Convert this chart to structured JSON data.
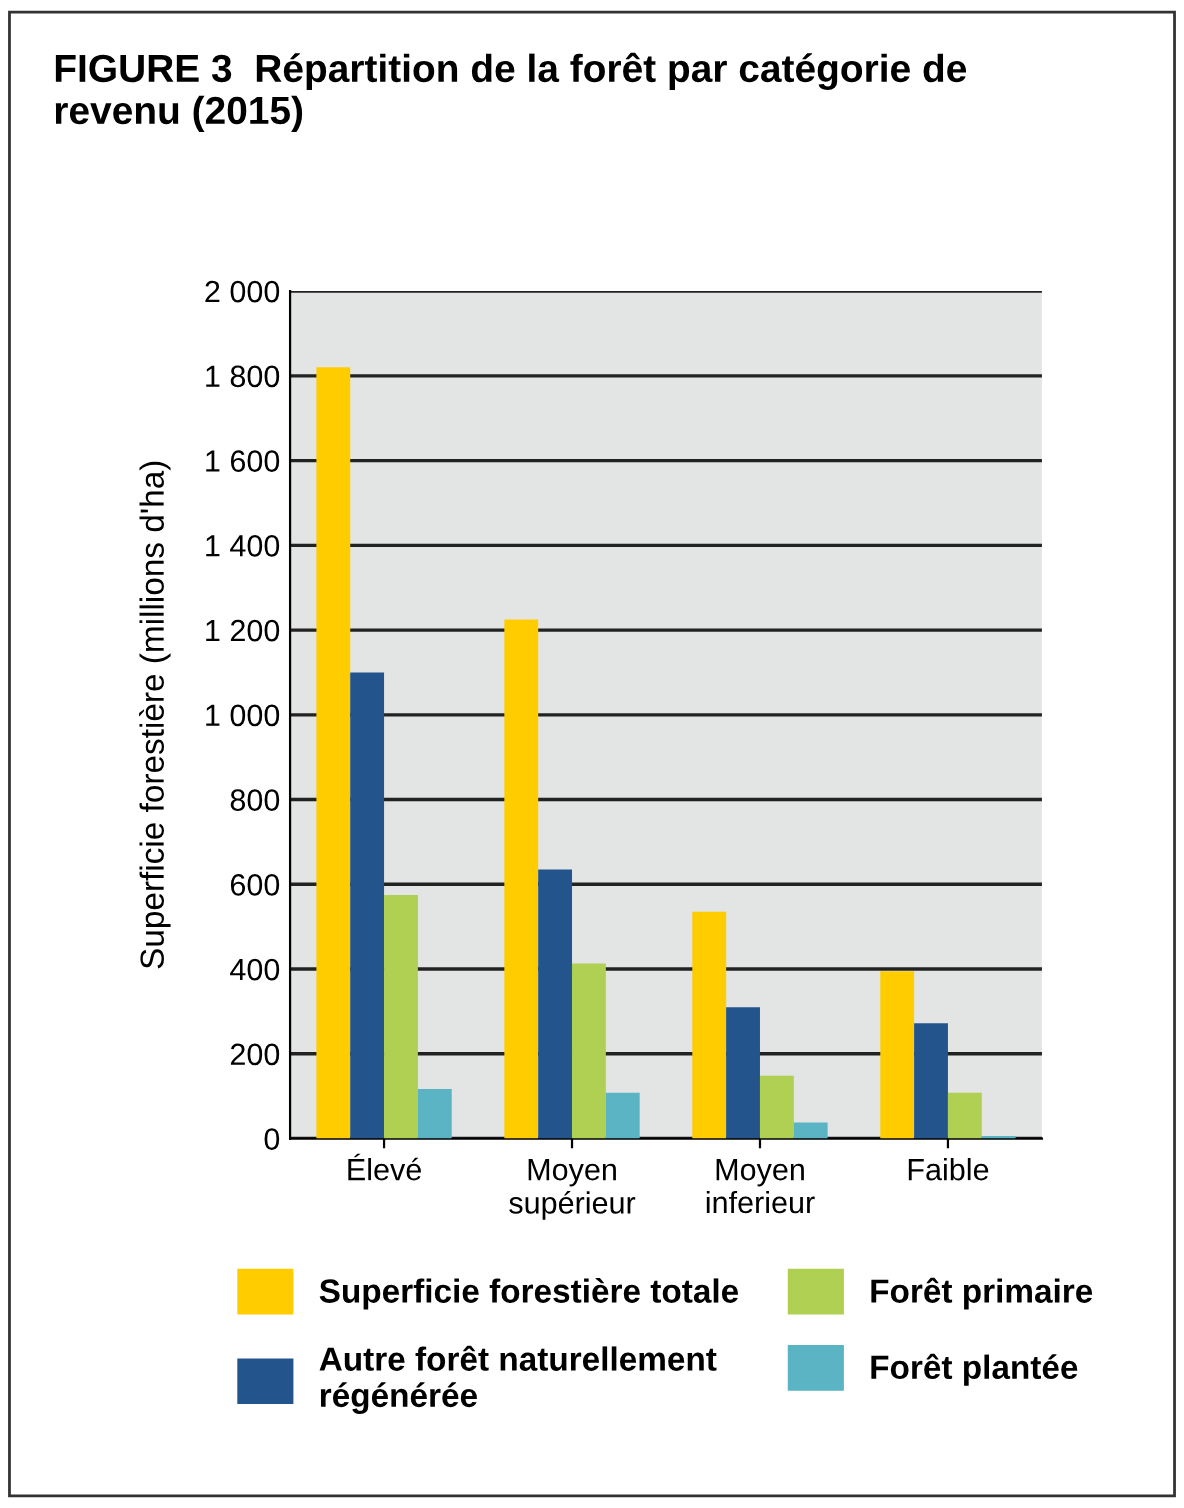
{
  "chart_data": {
    "type": "bar",
    "title": "FIGURE 3  Répartition de la forêt par catégorie de revenu (2015)",
    "ylabel": "Superficie forestière (millions d'ha)",
    "categories": [
      "Élevé",
      "Moyen\nsupérieur",
      "Moyen\ninferieur",
      "Faible"
    ],
    "series": [
      {
        "name": "Superficie forestière totale",
        "color": "#ffcc00",
        "values": [
          1820,
          1225,
          535,
          395
        ]
      },
      {
        "name": "Autre forêt naturellement\nrégénérée",
        "color": "#23548c",
        "values": [
          1100,
          635,
          310,
          272
        ]
      },
      {
        "name": "Forêt primaire",
        "color": "#afd052",
        "values": [
          575,
          413,
          148,
          108
        ]
      },
      {
        "name": "Forêt plantée",
        "color": "#5ab4c4",
        "values": [
          117,
          108,
          38,
          6
        ]
      }
    ],
    "ylim": [
      0,
      2000
    ],
    "yticks": [
      0,
      200,
      400,
      600,
      800,
      {
        "value": 1000,
        "label": "1 000"
      },
      {
        "value": 1200,
        "label": "1 200"
      },
      {
        "value": 1400,
        "label": "1 400"
      },
      {
        "value": 1600,
        "label": "1 600"
      },
      {
        "value": 1800,
        "label": "1 800"
      },
      {
        "value": 2000,
        "label": "2 000"
      }
    ],
    "grid": "y",
    "legend": "bottom"
  }
}
